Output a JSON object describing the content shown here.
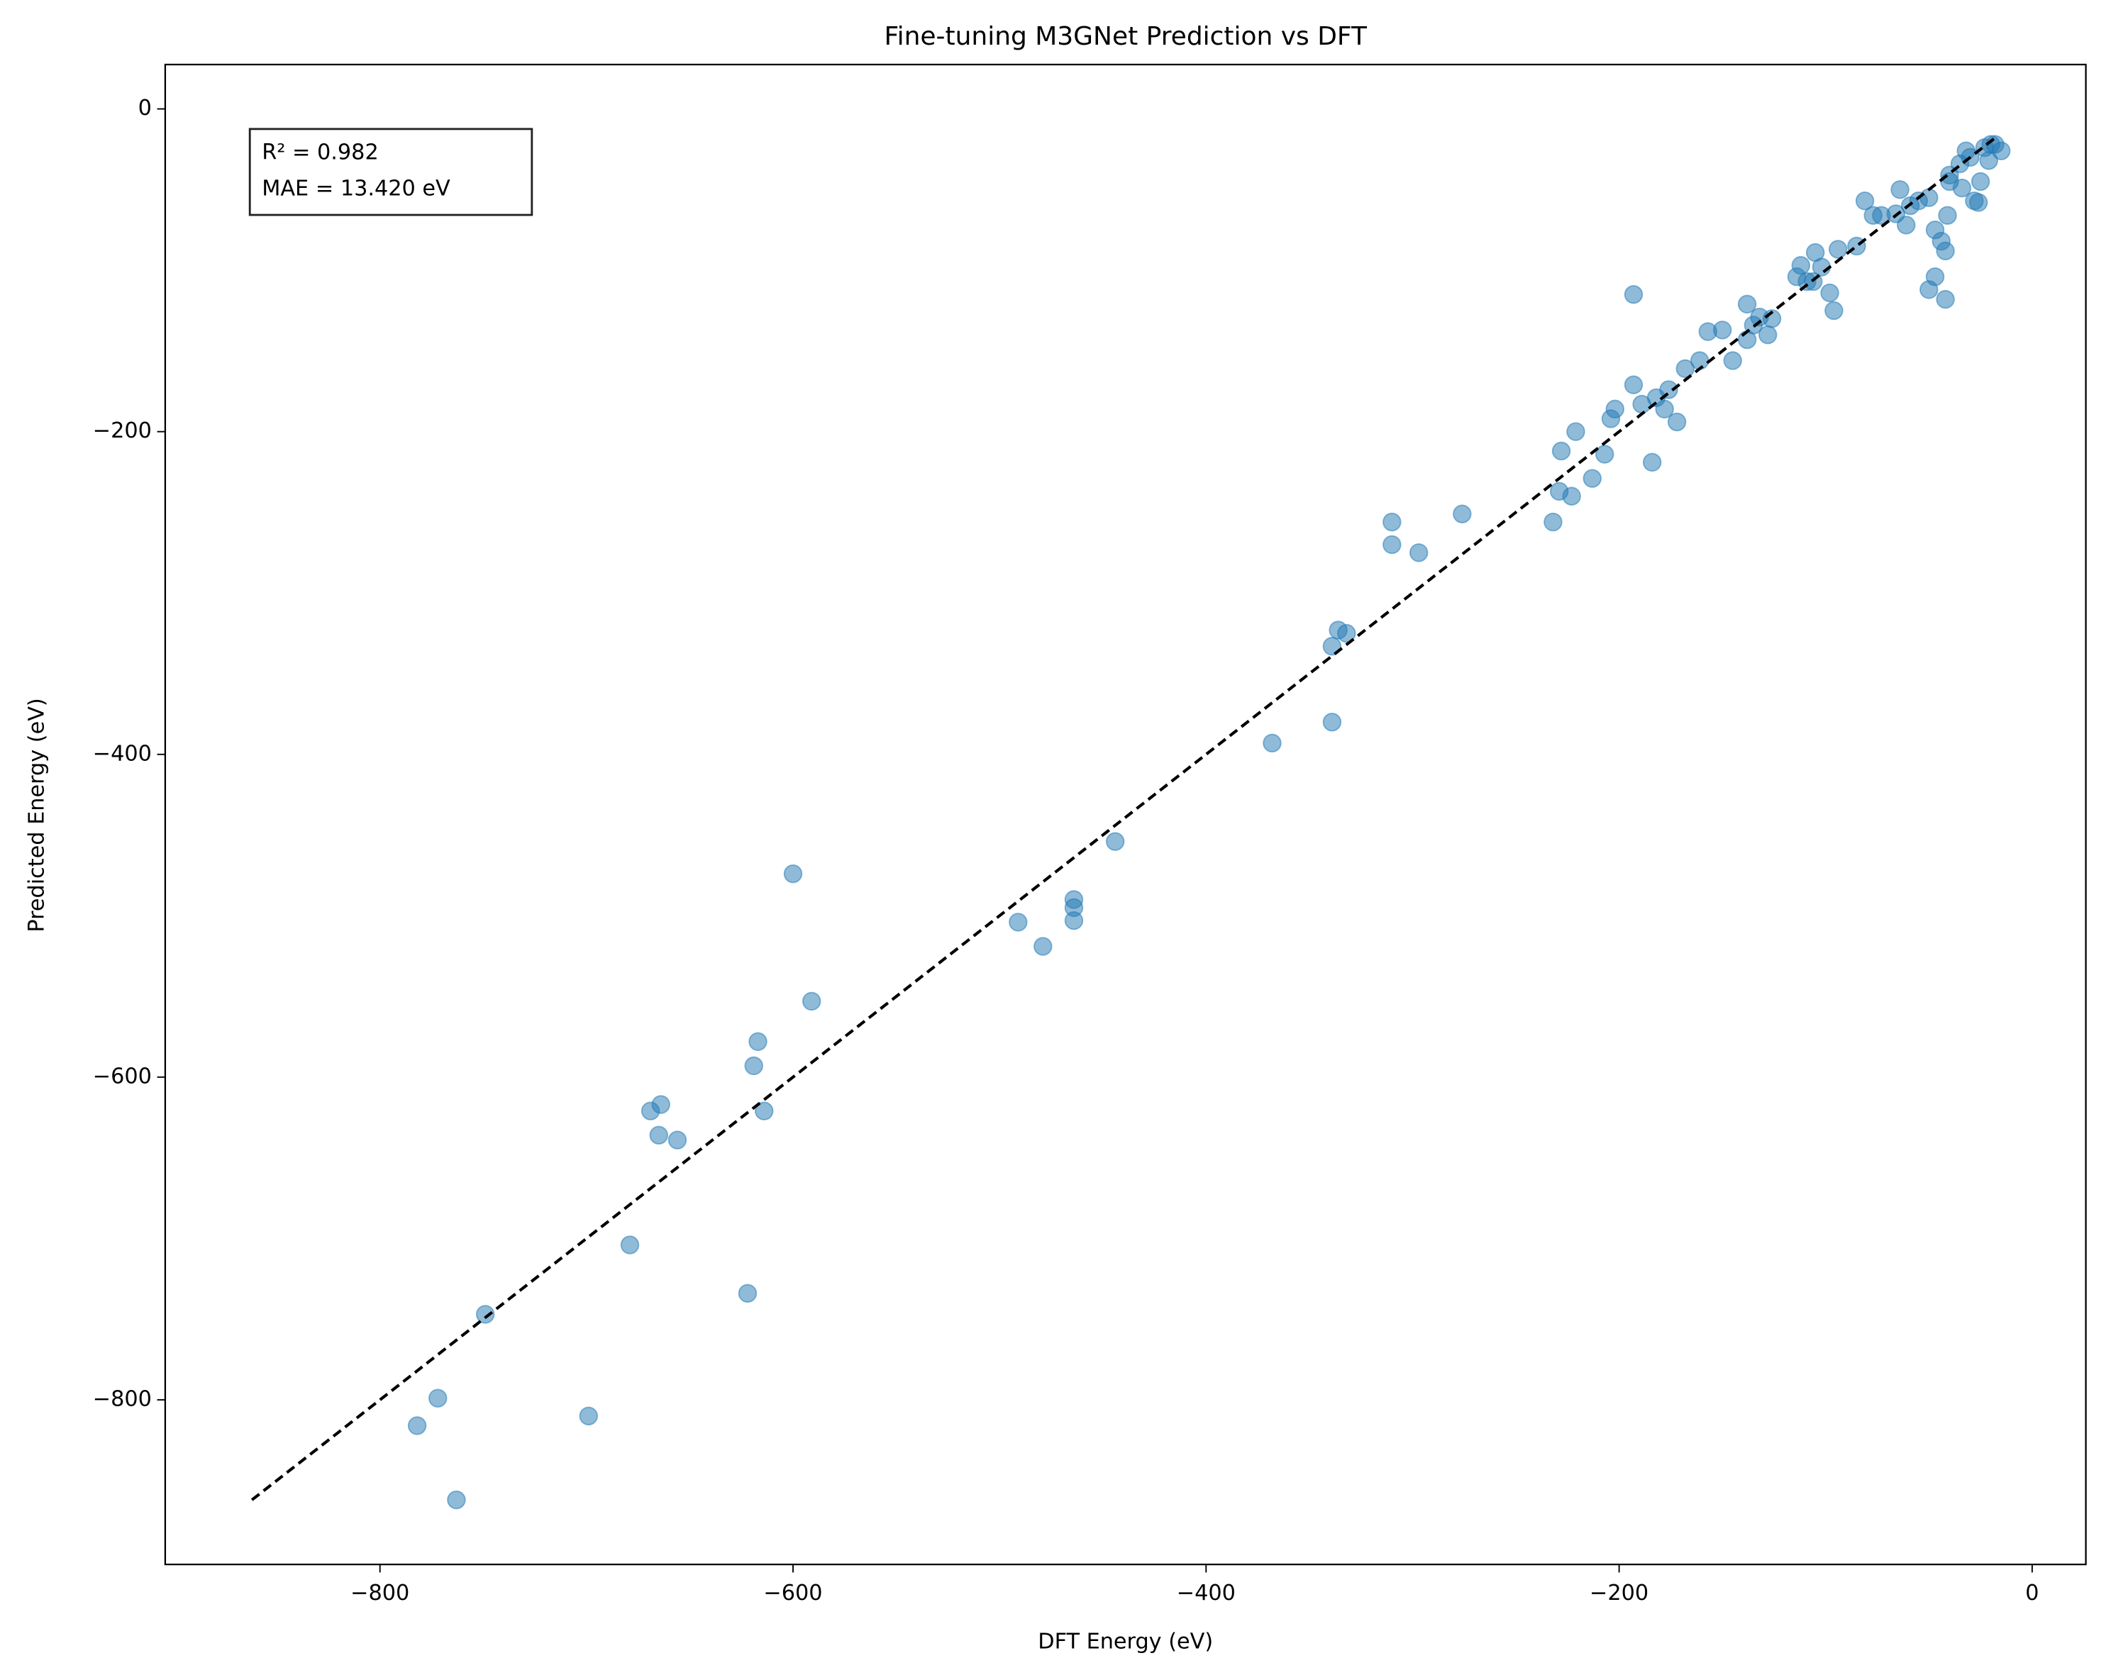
{
  "chart_data": {
    "type": "scatter",
    "title": "Fine-tuning M3GNet Prediction vs DFT",
    "x_label": "DFT Energy (eV)",
    "y_label": "Predicted Energy (eV)",
    "annotations": [
      "R² = 0.982",
      "MAE = 13.420 eV"
    ],
    "xlim": [
      -904,
      26
    ],
    "ylim": [
      -902,
      27.5
    ],
    "xticks": [
      {
        "value": -800,
        "label": "−800"
      },
      {
        "value": -600,
        "label": "−600"
      },
      {
        "value": -400,
        "label": "−400"
      },
      {
        "value": -200,
        "label": "−200"
      },
      0
    ],
    "yticks": [
      {
        "value": -800,
        "label": "−800"
      },
      {
        "value": -600,
        "label": "−600"
      },
      {
        "value": -400,
        "label": "−400"
      },
      {
        "value": -200,
        "label": "−200"
      },
      0
    ],
    "color": "#1f77b4",
    "reference_line": {
      "x": [
        -862,
        -18
      ],
      "y": [
        -862,
        -18
      ],
      "color": "#000000"
    },
    "x": [
      -782,
      -763,
      -772,
      -749,
      -699,
      -679,
      -669,
      -664,
      -665,
      -656,
      -622,
      -619,
      -617,
      -614,
      -600,
      -591,
      -491,
      -479,
      -464,
      -464,
      -464,
      -444,
      -368,
      -339,
      -339,
      -336,
      -332,
      -310,
      -310,
      -297,
      -276,
      -232,
      -229,
      -228,
      -223,
      -221,
      -213,
      -207,
      -204,
      -202,
      -193,
      -193,
      -189,
      -184,
      -182,
      -178,
      -176,
      -172,
      -168,
      -161,
      -157,
      -150,
      -145,
      -138,
      -135,
      -132,
      -128,
      -126,
      -138,
      -114,
      -109,
      -106,
      -102,
      -98,
      -96,
      -112,
      -105,
      -94,
      -85,
      -81,
      -77,
      -73,
      -64,
      -66,
      -61,
      -59,
      -55,
      -50,
      -47,
      -42,
      -47,
      -44,
      -42,
      -41,
      -40,
      -34,
      -28,
      -21,
      -25,
      -32,
      -23,
      -18,
      -15,
      -35,
      -26,
      -20,
      -30,
      -40,
      -50
    ],
    "y": [
      -816,
      -862,
      -799,
      -747,
      -810,
      -704,
      -621,
      -617,
      -636,
      -639,
      -734,
      -593,
      -578,
      -621,
      -474,
      -553,
      -504,
      -519,
      -490,
      -495,
      -503,
      -454,
      -393,
      -380,
      -333,
      -323,
      -325,
      -270,
      -256,
      -275,
      -251,
      -256,
      -237,
      -212,
      -240,
      -200,
      -229,
      -214,
      -192,
      -186,
      -115,
      -171,
      -183,
      -219,
      -179,
      -186,
      -174,
      -194,
      -161,
      -156,
      -138,
      -137,
      -156,
      -143,
      -134,
      -129,
      -140,
      -130,
      -121,
      -104,
      -107,
      -107,
      -98,
      -114,
      -125,
      -97,
      -89,
      -87,
      -85,
      -57,
      -66,
      -66,
      -50,
      -65,
      -72,
      -60,
      -57,
      -112,
      -104,
      -118,
      -75,
      -82,
      -88,
      -66,
      -41,
      -49,
      -57,
      -32,
      -45,
      -26,
      -24,
      -22,
      -26,
      -34,
      -58,
      -22,
      -30,
      -45,
      -55
    ]
  }
}
